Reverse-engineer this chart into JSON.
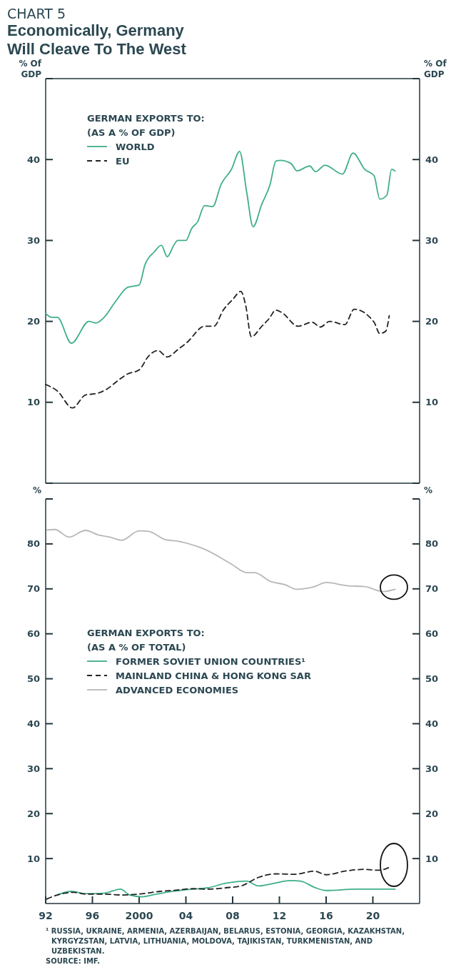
{
  "chart_data": [
    {
      "type": "line",
      "title": "Economically, Germany Will Cleave To The West",
      "annotations": [
        "CHART 5"
      ],
      "ylabel": "% Of\nGDP",
      "y2label": "% Of\nGDP",
      "legend_title": "GERMAN EXPORTS TO:\n(AS A % OF GDP)",
      "legend": "top left",
      "tick_labels": "y",
      "xlim": [
        1992,
        2024
      ],
      "ylim": [
        0,
        50
      ],
      "yticks": [
        {
          "value": 0,
          "label": null
        },
        10,
        20,
        30,
        40,
        {
          "value": 50,
          "label": null
        }
      ],
      "y2lim": [
        0,
        50
      ],
      "y2ticks": [
        {
          "value": 0,
          "label": null
        },
        10,
        20,
        30,
        40,
        {
          "value": 50,
          "label": null
        }
      ],
      "grid": false,
      "marker": "none",
      "series": [
        {
          "name": "WORLD",
          "color": "#3fae8c",
          "line_style": "solid",
          "x": [
            1992,
            1992.5,
            1993,
            1994.2,
            1995.7,
            1996.3,
            1997,
            1998,
            1999,
            2000,
            2000.5,
            2001.3,
            2001.9,
            2002.4,
            2003,
            2003.3,
            2004,
            2004.5,
            2005,
            2005.6,
            2006.3,
            2007,
            2007.9,
            2008.6,
            2009.2,
            2009.75,
            2010.5,
            2011.2,
            2011.7,
            2012.1,
            2013,
            2013.5,
            2014.6,
            2015.1,
            2015.9,
            2017.4,
            2018.3,
            2019.3,
            2020.1,
            2020.6,
            2021.2,
            2021.6,
            2021.9
          ],
          "values": [
            21,
            20.5,
            20.5,
            17.3,
            20,
            19.8,
            20.5,
            22.5,
            24.2,
            24.5,
            27,
            28.6,
            29.4,
            28,
            29.5,
            30,
            30,
            31.5,
            32.3,
            34.3,
            34.2,
            36.9,
            38.8,
            41,
            36,
            31.7,
            34.5,
            36.9,
            39.8,
            39.9,
            39.5,
            38.6,
            39.2,
            38.5,
            39.3,
            38.2,
            40.8,
            38.8,
            38,
            35.1,
            35.6,
            38.8,
            38.6
          ]
        },
        {
          "name": "EU",
          "color": "#222222",
          "line_style": "dashed",
          "x": [
            1992,
            1993,
            1994.3,
            1995.4,
            1996.4,
            1997.2,
            1998.2,
            1999,
            2000,
            2000.8,
            2001.6,
            2002.4,
            2003.3,
            2004.1,
            2005.6,
            2006.4,
            2007.2,
            2008,
            2008.7,
            2009.1,
            2009.6,
            2010.5,
            2011.1,
            2011.7,
            2012.2,
            2013.6,
            2014.8,
            2015.5,
            2016.3,
            2017.6,
            2018.4,
            2020.1,
            2020.6,
            2021.1,
            2021.4
          ],
          "values": [
            12.2,
            11.4,
            9.3,
            10.9,
            11.1,
            11.6,
            12.7,
            13.5,
            14,
            15.7,
            16.4,
            15.6,
            16.5,
            17.4,
            19.4,
            19.4,
            21.4,
            22.7,
            23.7,
            22.1,
            18.1,
            19.4,
            20.3,
            21.4,
            21.1,
            19.4,
            19.9,
            19.3,
            20,
            19.6,
            21.5,
            19.9,
            18.5,
            18.8,
            20.7
          ]
        }
      ]
    },
    {
      "type": "line",
      "ylabel": "%",
      "y2label": "%",
      "legend_title": "GERMAN EXPORTS TO:\n(AS A % OF TOTAL)",
      "legend": "left",
      "xlim": [
        1992,
        2024
      ],
      "xticks": [
        {
          "value": 1992,
          "label": "92"
        },
        {
          "value": 1996,
          "label": "96"
        },
        {
          "value": 2000,
          "label": "2000"
        },
        {
          "value": 2004,
          "label": "04"
        },
        {
          "value": 2008,
          "label": "08"
        },
        {
          "value": 2012,
          "label": "12"
        },
        {
          "value": 2016,
          "label": "16"
        },
        {
          "value": 2020,
          "label": "20"
        }
      ],
      "ylim": [
        0,
        90
      ],
      "yticks": [
        10,
        20,
        30,
        40,
        50,
        60,
        70,
        80,
        {
          "value": 90,
          "label": null
        }
      ],
      "y2lim": [
        0,
        90
      ],
      "y2ticks": [
        10,
        20,
        30,
        40,
        50,
        60,
        70,
        80,
        {
          "value": 90,
          "label": null
        }
      ],
      "grid": false,
      "marker": "none",
      "annotations": [
        "¹ RUSSIA, UKRAINE, ARMENIA, AZERBAIJAN, BELARUS, ESTONIA, GEORGIA, KAZAKHSTAN, KYRGYZSTAN, LATVIA, LITHUANIA, MOLDOVA, TAJIKISTAN, TURKMENISTAN, AND UZBEKISTAN.",
        "SOURCE: IMF."
      ],
      "series": [
        {
          "name": "FORMER SOVIET UNION COUNTRIES¹",
          "color": "#3fae8c",
          "line_style": "solid",
          "x": [
            1993,
            1994.2,
            1995.4,
            1997,
            1998.4,
            1999.2,
            2000.3,
            2001.3,
            2002.8,
            2004.6,
            2005.9,
            2007.4,
            2009.2,
            2010.2,
            2011,
            2013,
            2013.8,
            2015,
            2016,
            2018.6,
            2021.9
          ],
          "values": [
            1.9,
            2.7,
            2.2,
            2.3,
            3.2,
            1.9,
            1.5,
            2,
            2.7,
            3.2,
            3.5,
            4.5,
            5,
            3.9,
            4.2,
            5.1,
            5,
            3.6,
            2.9,
            3.2,
            3.2
          ]
        },
        {
          "name": "MAINLAND CHINA & HONG KONG SAR",
          "color": "#222222",
          "line_style": "dashed",
          "x": [
            1992.1,
            1993,
            1994.4,
            1995.4,
            1997,
            1998.5,
            2000,
            2001.8,
            2003.3,
            2004.6,
            2005.9,
            2007.4,
            2008.7,
            2010.2,
            2011.7,
            2013.3,
            2015,
            2016,
            2017.6,
            2019.3,
            2020.5,
            2021.6
          ],
          "values": [
            1,
            1.9,
            2.5,
            2.1,
            2.1,
            1.9,
            2.1,
            2.7,
            3,
            3.3,
            3.2,
            3.5,
            3.9,
            5.8,
            6.6,
            6.5,
            7.2,
            6.4,
            7.2,
            7.6,
            7.4,
            8.3
          ]
        },
        {
          "name": "ADVANCED ECONOMIES",
          "color": "#b8b8b8",
          "line_style": "solid",
          "x": [
            1992.1,
            1992.8,
            1994,
            1995.4,
            1996.5,
            1997.5,
            1998.5,
            2000,
            2000.8,
            2002.3,
            2003.3,
            2005.6,
            2007.9,
            2009.2,
            2009.9,
            2011.2,
            2012.5,
            2013.5,
            2015,
            2016,
            2017.8,
            2019.3,
            2020.9,
            2021.9
          ],
          "values": [
            83.1,
            83.2,
            81.5,
            83,
            82,
            81.5,
            80.8,
            82.9,
            82.8,
            80.9,
            80.6,
            78.8,
            75.5,
            73.6,
            73.6,
            71.7,
            70.9,
            69.9,
            70.5,
            71.4,
            70.7,
            70.5,
            69.4,
            69.9
          ]
        }
      ]
    }
  ]
}
